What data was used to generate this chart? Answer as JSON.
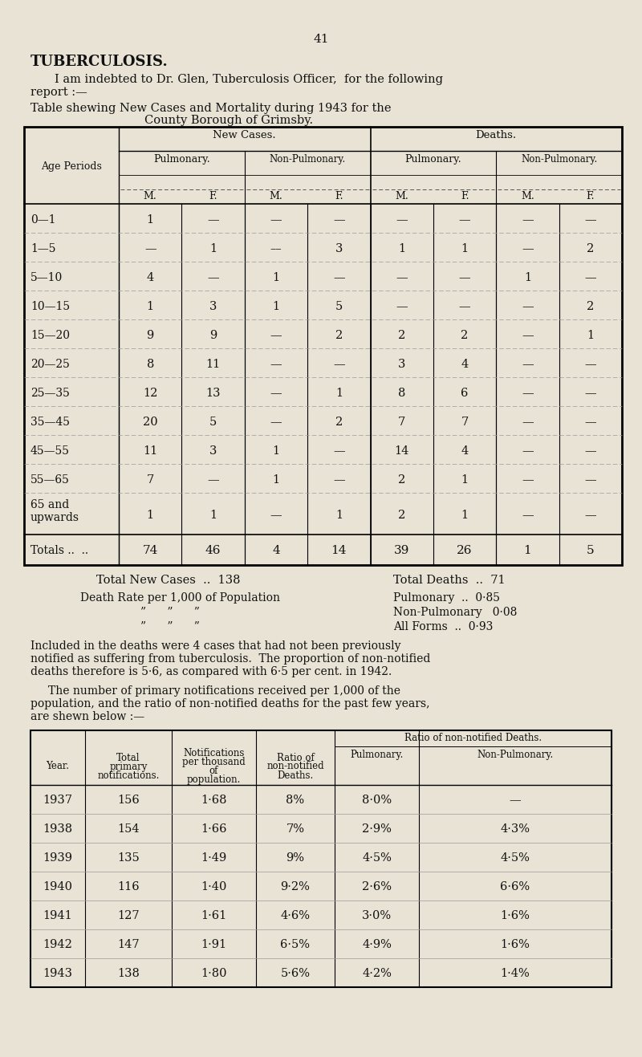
{
  "bg_color": "#e8e3d5",
  "page_number": "41",
  "title_bold": "TUBERCULOSIS.",
  "table1_rows": [
    [
      "0—1",
      "1",
      "—",
      "—",
      "—",
      "—",
      "—",
      "—",
      "—"
    ],
    [
      "1—5",
      "—",
      "1",
      "––",
      "3",
      "1",
      "1",
      "—",
      "2"
    ],
    [
      "5—10",
      "4",
      "—",
      "1",
      "—",
      "—",
      "—",
      "1",
      "—"
    ],
    [
      "10—15",
      "1",
      "3",
      "1",
      "5",
      "—",
      "—",
      "—",
      "2"
    ],
    [
      "15—20",
      "9",
      "9",
      "—",
      "2",
      "2",
      "2",
      "—",
      "1"
    ],
    [
      "20—25",
      "8",
      "11",
      "—",
      "—",
      "3",
      "4",
      "—",
      "—"
    ],
    [
      "25—35",
      "12",
      "13",
      "—",
      "1",
      "8",
      "6",
      "—",
      "—"
    ],
    [
      "35—45",
      "20",
      "5",
      "—",
      "2",
      "7",
      "7",
      "—",
      "—"
    ],
    [
      "45—55",
      "11",
      "3",
      "1",
      "—",
      "14",
      "4",
      "—",
      "—"
    ],
    [
      "55—65",
      "7",
      "—",
      "1",
      "—",
      "2",
      "1",
      "—",
      "—"
    ],
    [
      "65 and\nupwards",
      "1",
      "1",
      "—",
      "1",
      "2",
      "1",
      "—",
      "—"
    ]
  ],
  "table1_totals": [
    "Totals ..  ..",
    "74",
    "46",
    "4",
    "14",
    "39",
    "26",
    "1",
    "5"
  ],
  "table2_rows": [
    [
      "1937",
      "156",
      "1·68",
      "8%",
      "8·0%",
      "—"
    ],
    [
      "1938",
      "154",
      "1·66",
      "7%",
      "2·9%",
      "4·3%"
    ],
    [
      "1939",
      "135",
      "1·49",
      "9%",
      "4·5%",
      "4·5%"
    ],
    [
      "1940",
      "116",
      "1·40",
      "9·2%",
      "2·6%",
      "6·6%"
    ],
    [
      "1941",
      "127",
      "1·61",
      "4·6%",
      "3·0%",
      "1·6%"
    ],
    [
      "1942",
      "147",
      "1·91",
      "6·5%",
      "4·9%",
      "1·6%"
    ],
    [
      "1943",
      "138",
      "1·80",
      "5·6%",
      "4·2%",
      "1·4%"
    ]
  ]
}
